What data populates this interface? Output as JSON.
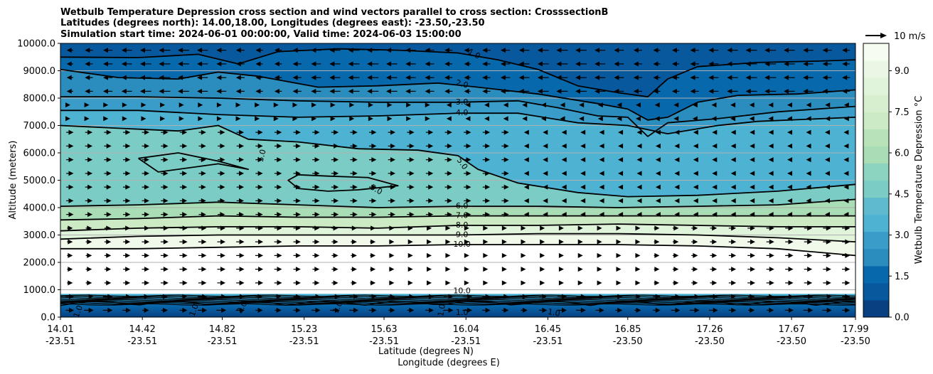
{
  "chart_data": {
    "type": "contourf",
    "title_lines": [
      "Wetbulb Temperature Depression cross section and wind vectors parallel to cross section: CrosssectionB",
      "Latitudes (degrees north): 14.00,18.00, Longitudes (degrees east): -23.50,-23.50",
      "Simulation start time: 2024-06-01 00:00:00, Valid time: 2024-06-03 15:00:00"
    ],
    "ylabel": "Altitude (meters)",
    "xlabel_lat": "Latitude (degrees N)",
    "xlabel_lon": "Longitude (degrees E)",
    "ylim": [
      0,
      10000
    ],
    "yticks": [
      "0.0",
      "1000.0",
      "2000.0",
      "3000.0",
      "4000.0",
      "5000.0",
      "6000.0",
      "7000.0",
      "8000.0",
      "9000.0",
      "10000.0"
    ],
    "xticks": [
      {
        "lat": "14.01",
        "lon": "-23.51"
      },
      {
        "lat": "14.42",
        "lon": "-23.51"
      },
      {
        "lat": "14.82",
        "lon": "-23.51"
      },
      {
        "lat": "15.23",
        "lon": "-23.51"
      },
      {
        "lat": "15.63",
        "lon": "-23.51"
      },
      {
        "lat": "16.04",
        "lon": "-23.51"
      },
      {
        "lat": "16.45",
        "lon": "-23.51"
      },
      {
        "lat": "16.85",
        "lon": "-23.50"
      },
      {
        "lat": "17.26",
        "lon": "-23.50"
      },
      {
        "lat": "17.67",
        "lon": "-23.50"
      },
      {
        "lat": "17.99",
        "lon": "-23.50"
      }
    ],
    "colorbar": {
      "label": "Wetbulb Temperature Depression $^\\circ$C",
      "label_display": "Wetbulb Temperature Depression °C",
      "min": 0,
      "max": 10,
      "ticks": [
        "0.0",
        "1.5",
        "3.0",
        "4.5",
        "6.0",
        "7.5",
        "9.0"
      ],
      "colors": [
        "#084081",
        "#08589e",
        "#0868ac",
        "#2b8cbe",
        "#3a9cc8",
        "#4eb3d3",
        "#5fbacf",
        "#7bccc4",
        "#8dd4c0",
        "#a8ddb5",
        "#b8e3b8",
        "#ccebc5",
        "#d7efcf",
        "#e0f3db",
        "#ebf7e5",
        "#f7fcf0"
      ]
    },
    "wind_key": {
      "label": "10 m/s",
      "speed": 10
    },
    "contour_labels": [
      {
        "text": "1.0",
        "x": 16.08,
        "y": 9600,
        "rot": 28
      },
      {
        "text": "2.0",
        "x": 16.02,
        "y": 8500,
        "rot": 15
      },
      {
        "text": "3.0",
        "x": 16.02,
        "y": 7850,
        "rot": 0
      },
      {
        "text": "4.0",
        "x": 16.02,
        "y": 7450,
        "rot": 0
      },
      {
        "text": "5.0",
        "x": 15.02,
        "y": 5900,
        "rot": -75
      },
      {
        "text": "5.0",
        "x": 16.02,
        "y": 5600,
        "rot": 55
      },
      {
        "text": "5.0",
        "x": 15.59,
        "y": 4650,
        "rot": 30
      },
      {
        "text": "6.0",
        "x": 16.02,
        "y": 4050,
        "rot": 0
      },
      {
        "text": "7.0",
        "x": 16.02,
        "y": 3700,
        "rot": 0
      },
      {
        "text": "8.0",
        "x": 16.02,
        "y": 3350,
        "rot": 0
      },
      {
        "text": "9.0",
        "x": 16.02,
        "y": 3000,
        "rot": 0
      },
      {
        "text": "10.0",
        "x": 16.02,
        "y": 2650,
        "rot": 0
      },
      {
        "text": "10.0",
        "x": 16.02,
        "y": 950,
        "rot": 0
      },
      {
        "text": "1.0",
        "x": 16.02,
        "y": 150,
        "rot": 0
      },
      {
        "text": "1.0",
        "x": 16.48,
        "y": 150,
        "rot": 10
      },
      {
        "text": "1.0",
        "x": 14.1,
        "y": 200,
        "rot": -70
      },
      {
        "text": "1.0",
        "x": 14.68,
        "y": 250,
        "rot": -70
      },
      {
        "text": "1.0",
        "x": 15.4,
        "y": 350,
        "rot": -65
      },
      {
        "text": "2.0",
        "x": 14.92,
        "y": 350,
        "rot": -60
      },
      {
        "text": "1.0",
        "x": 15.92,
        "y": 250,
        "rot": -80
      }
    ],
    "contours": [
      {
        "level": 1.0,
        "points": [
          [
            14.01,
            9500
          ],
          [
            14.4,
            9480
          ],
          [
            14.7,
            9600
          ],
          [
            14.9,
            9250
          ],
          [
            15.1,
            9700
          ],
          [
            15.4,
            9800
          ],
          [
            15.7,
            9750
          ],
          [
            16.0,
            9650
          ],
          [
            16.2,
            9400
          ],
          [
            16.4,
            9050
          ],
          [
            16.6,
            8450
          ],
          [
            16.8,
            8200
          ],
          [
            16.95,
            8050
          ],
          [
            17.05,
            8700
          ],
          [
            17.2,
            9150
          ],
          [
            17.5,
            9300
          ],
          [
            17.8,
            9350
          ],
          [
            17.99,
            9400
          ]
        ]
      },
      {
        "level": 2.0,
        "points": [
          [
            14.01,
            9050
          ],
          [
            14.3,
            8750
          ],
          [
            14.6,
            8700
          ],
          [
            14.8,
            8950
          ],
          [
            15.0,
            8800
          ],
          [
            15.3,
            8400
          ],
          [
            15.6,
            8450
          ],
          [
            15.9,
            8550
          ],
          [
            16.1,
            8400
          ],
          [
            16.4,
            8150
          ],
          [
            16.7,
            7800
          ],
          [
            16.85,
            7600
          ],
          [
            16.95,
            7200
          ],
          [
            17.05,
            7300
          ],
          [
            17.2,
            7850
          ],
          [
            17.4,
            8100
          ],
          [
            17.7,
            8150
          ],
          [
            17.99,
            8300
          ]
        ]
      },
      {
        "level": 3.0,
        "points": [
          [
            14.01,
            8050
          ],
          [
            14.4,
            8050
          ],
          [
            14.8,
            8000
          ],
          [
            15.2,
            7900
          ],
          [
            15.6,
            7850
          ],
          [
            16.0,
            7850
          ],
          [
            16.3,
            7900
          ],
          [
            16.5,
            7650
          ],
          [
            16.7,
            7350
          ],
          [
            16.85,
            7300
          ],
          [
            16.95,
            6600
          ],
          [
            17.05,
            7100
          ],
          [
            17.3,
            7250
          ],
          [
            17.6,
            7500
          ],
          [
            17.99,
            7700
          ]
        ]
      },
      {
        "level": 4.0,
        "points": [
          [
            14.01,
            7550
          ],
          [
            14.4,
            7550
          ],
          [
            14.8,
            7400
          ],
          [
            15.2,
            7300
          ],
          [
            15.6,
            7350
          ],
          [
            16.0,
            7450
          ],
          [
            16.3,
            7450
          ],
          [
            16.6,
            7100
          ],
          [
            16.85,
            7000
          ],
          [
            17.05,
            6700
          ],
          [
            17.3,
            7000
          ],
          [
            17.5,
            7150
          ],
          [
            17.99,
            7300
          ]
        ]
      },
      {
        "level": 5.0,
        "points": [
          [
            14.01,
            7000
          ],
          [
            14.3,
            6900
          ],
          [
            14.6,
            6800
          ],
          [
            14.8,
            7000
          ],
          [
            14.95,
            6500
          ],
          [
            15.2,
            6400
          ],
          [
            15.5,
            6150
          ],
          [
            15.8,
            6100
          ],
          [
            16.0,
            5900
          ],
          [
            16.1,
            5400
          ],
          [
            16.3,
            4900
          ],
          [
            16.6,
            4550
          ],
          [
            16.85,
            4400
          ],
          [
            17.2,
            4450
          ],
          [
            17.6,
            4600
          ],
          [
            17.99,
            4850
          ]
        ]
      },
      {
        "level": 5.0,
        "points": [
          [
            14.4,
            5800
          ],
          [
            14.6,
            6000
          ],
          [
            14.8,
            5700
          ],
          [
            14.95,
            5400
          ],
          [
            14.8,
            5600
          ],
          [
            14.5,
            5300
          ],
          [
            14.4,
            5800
          ]
        ]
      },
      {
        "level": 5.0,
        "points": [
          [
            15.2,
            5200
          ],
          [
            15.35,
            5150
          ],
          [
            15.55,
            5100
          ],
          [
            15.7,
            4800
          ],
          [
            15.5,
            4650
          ],
          [
            15.35,
            4600
          ],
          [
            15.2,
            4700
          ],
          [
            15.15,
            5000
          ],
          [
            15.2,
            5200
          ]
        ]
      },
      {
        "level": 6.0,
        "points": [
          [
            14.01,
            4050
          ],
          [
            14.4,
            4100
          ],
          [
            14.8,
            4200
          ],
          [
            15.2,
            4100
          ],
          [
            15.6,
            4000
          ],
          [
            16.0,
            4050
          ],
          [
            16.4,
            4050
          ],
          [
            16.8,
            4000
          ],
          [
            17.2,
            4050
          ],
          [
            17.6,
            4100
          ],
          [
            17.99,
            4300
          ]
        ]
      },
      {
        "level": 7.0,
        "points": [
          [
            14.01,
            3550
          ],
          [
            14.4,
            3600
          ],
          [
            14.8,
            3700
          ],
          [
            15.2,
            3650
          ],
          [
            15.6,
            3650
          ],
          [
            16.0,
            3700
          ],
          [
            16.4,
            3700
          ],
          [
            16.8,
            3700
          ],
          [
            17.2,
            3700
          ],
          [
            17.6,
            3700
          ],
          [
            17.99,
            3700
          ]
        ]
      },
      {
        "level": 8.0,
        "points": [
          [
            14.01,
            3150
          ],
          [
            14.4,
            3250
          ],
          [
            14.8,
            3300
          ],
          [
            15.2,
            3300
          ],
          [
            15.6,
            3250
          ],
          [
            16.0,
            3350
          ],
          [
            16.4,
            3350
          ],
          [
            16.8,
            3400
          ],
          [
            17.2,
            3350
          ],
          [
            17.6,
            3300
          ],
          [
            17.99,
            3300
          ]
        ]
      },
      {
        "level": 9.0,
        "points": [
          [
            14.01,
            2850
          ],
          [
            14.4,
            2950
          ],
          [
            14.8,
            3000
          ],
          [
            15.2,
            3000
          ],
          [
            15.6,
            3000
          ],
          [
            16.0,
            3000
          ],
          [
            16.4,
            3050
          ],
          [
            16.8,
            3050
          ],
          [
            17.2,
            3000
          ],
          [
            17.6,
            2900
          ],
          [
            17.99,
            2750
          ]
        ]
      },
      {
        "level": 10.0,
        "points": [
          [
            14.01,
            2500
          ],
          [
            14.4,
            2500
          ],
          [
            14.8,
            2550
          ],
          [
            15.2,
            2600
          ],
          [
            15.6,
            2600
          ],
          [
            16.0,
            2650
          ],
          [
            16.4,
            2650
          ],
          [
            16.8,
            2650
          ],
          [
            17.2,
            2600
          ],
          [
            17.6,
            2500
          ],
          [
            17.99,
            2250
          ]
        ]
      }
    ],
    "low_level_band": {
      "top": 850,
      "bottom": 0
    },
    "notes": "Filled contours of wetbulb temperature depression with black contour lines and wind arrows parallel to cross section."
  }
}
